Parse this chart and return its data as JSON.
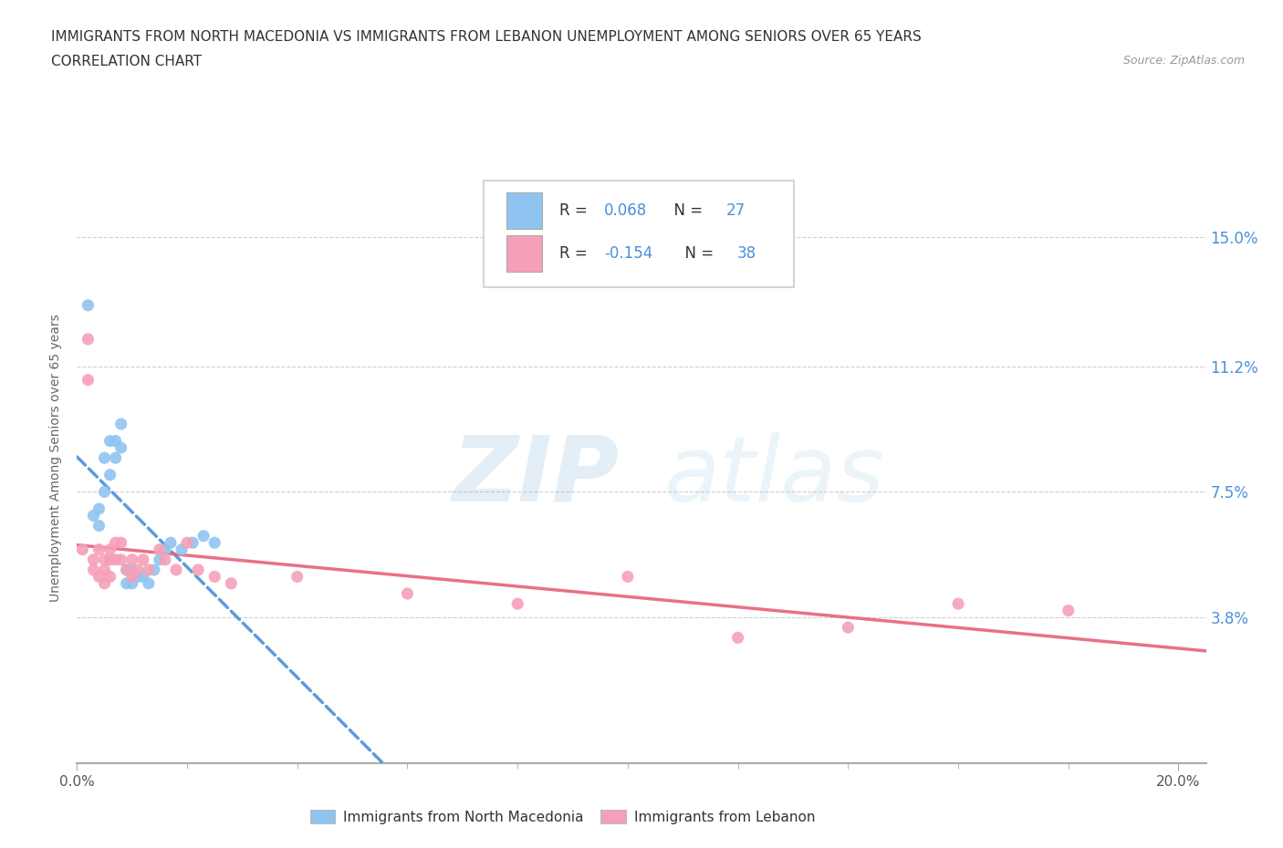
{
  "title_line1": "IMMIGRANTS FROM NORTH MACEDONIA VS IMMIGRANTS FROM LEBANON UNEMPLOYMENT AMONG SENIORS OVER 65 YEARS",
  "title_line2": "CORRELATION CHART",
  "source": "Source: ZipAtlas.com",
  "ylabel": "Unemployment Among Seniors over 65 years",
  "xlim": [
    0.0,
    0.205
  ],
  "ylim": [
    -0.005,
    0.175
  ],
  "yticks": [
    0.038,
    0.075,
    0.112,
    0.15
  ],
  "ytick_labels": [
    "3.8%",
    "7.5%",
    "11.2%",
    "15.0%"
  ],
  "xticks": [
    0.0,
    0.2
  ],
  "xtick_labels": [
    "0.0%",
    "20.0%"
  ],
  "R_north_macedonia": 0.068,
  "N_north_macedonia": 27,
  "R_lebanon": -0.154,
  "N_lebanon": 38,
  "color_north_macedonia": "#90C4F0",
  "color_lebanon": "#F5A0B8",
  "trend_color_north_macedonia": "#4A90D9",
  "trend_color_lebanon": "#E8607A",
  "background_color": "#FFFFFF",
  "grid_color": "#BBBBBB",
  "nm_x": [
    0.002,
    0.003,
    0.004,
    0.004,
    0.005,
    0.005,
    0.006,
    0.006,
    0.007,
    0.007,
    0.008,
    0.008,
    0.009,
    0.009,
    0.01,
    0.01,
    0.011,
    0.012,
    0.013,
    0.014,
    0.015,
    0.016,
    0.017,
    0.019,
    0.021,
    0.023,
    0.025
  ],
  "nm_y": [
    0.13,
    0.068,
    0.07,
    0.065,
    0.085,
    0.075,
    0.09,
    0.08,
    0.09,
    0.085,
    0.095,
    0.088,
    0.052,
    0.048,
    0.052,
    0.048,
    0.05,
    0.05,
    0.048,
    0.052,
    0.055,
    0.058,
    0.06,
    0.058,
    0.06,
    0.062,
    0.06
  ],
  "lb_x": [
    0.001,
    0.002,
    0.002,
    0.003,
    0.003,
    0.004,
    0.004,
    0.005,
    0.005,
    0.005,
    0.006,
    0.006,
    0.006,
    0.007,
    0.007,
    0.008,
    0.008,
    0.009,
    0.01,
    0.01,
    0.011,
    0.012,
    0.013,
    0.015,
    0.016,
    0.018,
    0.02,
    0.022,
    0.025,
    0.028,
    0.04,
    0.06,
    0.08,
    0.1,
    0.12,
    0.14,
    0.16,
    0.18
  ],
  "lb_y": [
    0.058,
    0.12,
    0.108,
    0.055,
    0.052,
    0.058,
    0.05,
    0.055,
    0.052,
    0.048,
    0.058,
    0.055,
    0.05,
    0.06,
    0.055,
    0.06,
    0.055,
    0.052,
    0.055,
    0.05,
    0.052,
    0.055,
    0.052,
    0.058,
    0.055,
    0.052,
    0.06,
    0.052,
    0.05,
    0.048,
    0.05,
    0.045,
    0.042,
    0.05,
    0.032,
    0.035,
    0.042,
    0.04
  ],
  "watermark_zip": "ZIP",
  "watermark_atlas": "atlas",
  "title_fontsize": 11,
  "axis_label_fontsize": 10,
  "tick_fontsize": 11,
  "legend_fontsize": 12
}
